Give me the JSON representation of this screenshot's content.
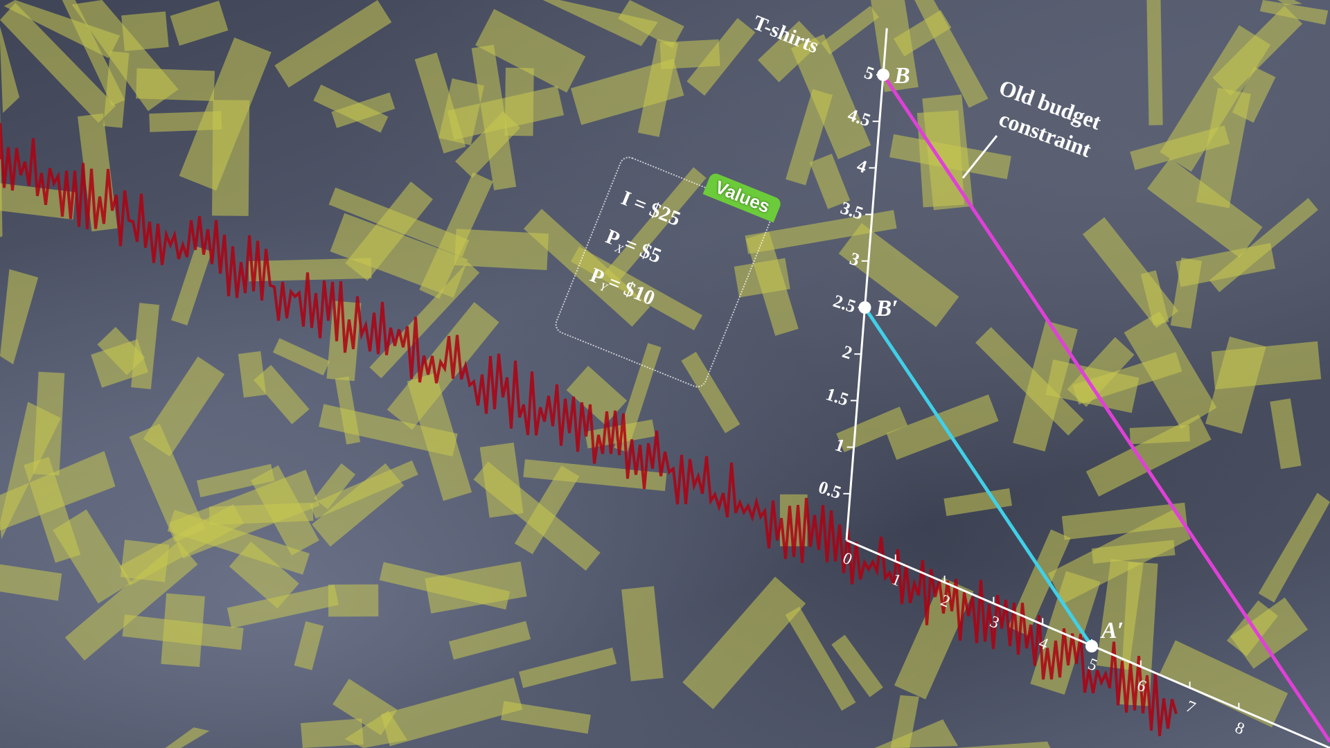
{
  "chart_data": {
    "type": "line",
    "xlabel": "",
    "ylabel": "T-shirts",
    "xlim": [
      0,
      8
    ],
    "ylim": [
      0,
      5
    ],
    "x_ticks": [
      "0",
      "1",
      "2",
      "3",
      "4",
      "5",
      "6",
      "7",
      "8"
    ],
    "y_ticks": [
      "0.5",
      "1",
      "1.5",
      "2",
      "2.5",
      "3",
      "3.5",
      "4",
      "4.5",
      "5"
    ],
    "grid": false,
    "series": [
      {
        "key": "old",
        "points": [
          [
            0,
            5
          ],
          [
            10,
            0
          ]
        ],
        "color": "#e040d8"
      },
      {
        "key": "new",
        "points": [
          [
            0,
            2.5
          ],
          [
            5,
            0
          ]
        ],
        "color": "#40d0e8"
      }
    ],
    "points": [
      {
        "label": "B",
        "x": 0,
        "y": 5
      },
      {
        "label": "B′",
        "x": 0,
        "y": 2.5
      },
      {
        "label": "A′",
        "x": 5,
        "y": 0
      }
    ],
    "annotation": "Old budget constraint",
    "values_box": {
      "title": "Values",
      "rows": [
        {
          "sym": "I",
          "sub": "",
          "text": "= $25"
        },
        {
          "sym": "P",
          "sub": "X",
          "text": "= $5"
        },
        {
          "sym": "P",
          "sub": "Y",
          "text": "= $10"
        }
      ]
    }
  },
  "colors": {
    "terrain": "#4a5063",
    "vegetation": "#c8c850",
    "fault": "#b00010"
  }
}
